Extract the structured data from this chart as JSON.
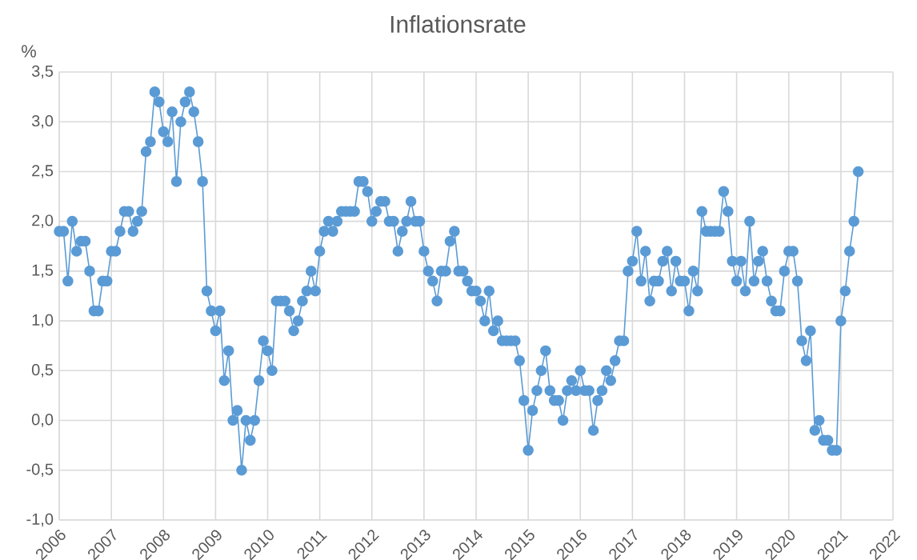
{
  "chart_data": {
    "type": "line",
    "title": "Inflationsrate",
    "ylabel": "%",
    "marker": "circle",
    "line_style": "solid",
    "grid": true,
    "xlim": [
      "2006",
      "2022"
    ],
    "xticks": [
      "2006",
      "2007",
      "2008",
      "2009",
      "2010",
      "2011",
      "2012",
      "2013",
      "2014",
      "2015",
      "2016",
      "2017",
      "2018",
      "2019",
      "2020",
      "2021",
      "2022"
    ],
    "ylim": [
      -1.0,
      3.5
    ],
    "yticks": [
      {
        "value": -1.0,
        "label": "-1,0"
      },
      {
        "value": -0.5,
        "label": "-0,5"
      },
      {
        "value": 0.0,
        "label": "0,0"
      },
      {
        "value": 0.5,
        "label": "0,5"
      },
      {
        "value": 1.0,
        "label": "1,0"
      },
      {
        "value": 1.5,
        "label": "1,5"
      },
      {
        "value": 2.0,
        "label": "2,0"
      },
      {
        "value": 2.5,
        "label": "2,5"
      },
      {
        "value": 3.0,
        "label": "3,0"
      },
      {
        "value": 3.5,
        "label": "3,5"
      }
    ],
    "x": [
      "2006-01",
      "2006-02",
      "2006-03",
      "2006-04",
      "2006-05",
      "2006-06",
      "2006-07",
      "2006-08",
      "2006-09",
      "2006-10",
      "2006-11",
      "2006-12",
      "2007-01",
      "2007-02",
      "2007-03",
      "2007-04",
      "2007-05",
      "2007-06",
      "2007-07",
      "2007-08",
      "2007-09",
      "2007-10",
      "2007-11",
      "2007-12",
      "2008-01",
      "2008-02",
      "2008-03",
      "2008-04",
      "2008-05",
      "2008-06",
      "2008-07",
      "2008-08",
      "2008-09",
      "2008-10",
      "2008-11",
      "2008-12",
      "2009-01",
      "2009-02",
      "2009-03",
      "2009-04",
      "2009-05",
      "2009-06",
      "2009-07",
      "2009-08",
      "2009-09",
      "2009-10",
      "2009-11",
      "2009-12",
      "2010-01",
      "2010-02",
      "2010-03",
      "2010-04",
      "2010-05",
      "2010-06",
      "2010-07",
      "2010-08",
      "2010-09",
      "2010-10",
      "2010-11",
      "2010-12",
      "2011-01",
      "2011-02",
      "2011-03",
      "2011-04",
      "2011-05",
      "2011-06",
      "2011-07",
      "2011-08",
      "2011-09",
      "2011-10",
      "2011-11",
      "2011-12",
      "2012-01",
      "2012-02",
      "2012-03",
      "2012-04",
      "2012-05",
      "2012-06",
      "2012-07",
      "2012-08",
      "2012-09",
      "2012-10",
      "2012-11",
      "2012-12",
      "2013-01",
      "2013-02",
      "2013-03",
      "2013-04",
      "2013-05",
      "2013-06",
      "2013-07",
      "2013-08",
      "2013-09",
      "2013-10",
      "2013-11",
      "2013-12",
      "2014-01",
      "2014-02",
      "2014-03",
      "2014-04",
      "2014-05",
      "2014-06",
      "2014-07",
      "2014-08",
      "2014-09",
      "2014-10",
      "2014-11",
      "2014-12",
      "2015-01",
      "2015-02",
      "2015-03",
      "2015-04",
      "2015-05",
      "2015-06",
      "2015-07",
      "2015-08",
      "2015-09",
      "2015-10",
      "2015-11",
      "2015-12",
      "2016-01",
      "2016-02",
      "2016-03",
      "2016-04",
      "2016-05",
      "2016-06",
      "2016-07",
      "2016-08",
      "2016-09",
      "2016-10",
      "2016-11",
      "2016-12",
      "2017-01",
      "2017-02",
      "2017-03",
      "2017-04",
      "2017-05",
      "2017-06",
      "2017-07",
      "2017-08",
      "2017-09",
      "2017-10",
      "2017-11",
      "2017-12",
      "2018-01",
      "2018-02",
      "2018-03",
      "2018-04",
      "2018-05",
      "2018-06",
      "2018-07",
      "2018-08",
      "2018-09",
      "2018-10",
      "2018-11",
      "2018-12",
      "2019-01",
      "2019-02",
      "2019-03",
      "2019-04",
      "2019-05",
      "2019-06",
      "2019-07",
      "2019-08",
      "2019-09",
      "2019-10",
      "2019-11",
      "2019-12",
      "2020-01",
      "2020-02",
      "2020-03",
      "2020-04",
      "2020-05",
      "2020-06",
      "2020-07",
      "2020-08",
      "2020-09",
      "2020-10",
      "2020-11",
      "2020-12",
      "2021-01",
      "2021-02",
      "2021-03",
      "2021-04",
      "2021-05"
    ],
    "series": [
      {
        "color": "#5b9bd5",
        "values": [
          1.9,
          1.9,
          1.4,
          2.0,
          1.7,
          1.8,
          1.8,
          1.5,
          1.1,
          1.1,
          1.4,
          1.4,
          1.7,
          1.7,
          1.9,
          2.1,
          2.1,
          1.9,
          2.0,
          2.1,
          2.7,
          2.8,
          3.3,
          3.2,
          2.9,
          2.8,
          3.1,
          2.4,
          3.0,
          3.2,
          3.3,
          3.1,
          2.8,
          2.4,
          1.3,
          1.1,
          0.9,
          1.1,
          0.4,
          0.7,
          0.0,
          0.1,
          -0.5,
          0.0,
          -0.2,
          0.0,
          0.4,
          0.8,
          0.7,
          0.5,
          1.2,
          1.2,
          1.2,
          1.1,
          0.9,
          1.0,
          1.2,
          1.3,
          1.5,
          1.3,
          1.7,
          1.9,
          2.0,
          1.9,
          2.0,
          2.1,
          2.1,
          2.1,
          2.1,
          2.4,
          2.4,
          2.3,
          2.0,
          2.1,
          2.2,
          2.2,
          2.0,
          2.0,
          1.7,
          1.9,
          2.0,
          2.2,
          2.0,
          2.0,
          1.7,
          1.5,
          1.4,
          1.2,
          1.5,
          1.5,
          1.8,
          1.9,
          1.5,
          1.5,
          1.4,
          1.3,
          1.3,
          1.2,
          1.0,
          1.3,
          0.9,
          1.0,
          0.8,
          0.8,
          0.8,
          0.8,
          0.6,
          0.2,
          -0.3,
          0.1,
          0.3,
          0.5,
          0.7,
          0.3,
          0.2,
          0.2,
          0.0,
          0.3,
          0.4,
          0.3,
          0.5,
          0.3,
          0.3,
          -0.1,
          0.2,
          0.3,
          0.5,
          0.4,
          0.6,
          0.8,
          0.8,
          1.5,
          1.6,
          1.9,
          1.4,
          1.7,
          1.2,
          1.4,
          1.4,
          1.6,
          1.7,
          1.3,
          1.6,
          1.4,
          1.4,
          1.1,
          1.5,
          1.3,
          2.1,
          1.9,
          1.9,
          1.9,
          1.9,
          2.3,
          2.1,
          1.6,
          1.4,
          1.6,
          1.3,
          2.0,
          1.4,
          1.6,
          1.7,
          1.4,
          1.2,
          1.1,
          1.1,
          1.5,
          1.7,
          1.7,
          1.4,
          0.8,
          0.6,
          0.9,
          -0.1,
          0.0,
          -0.2,
          -0.2,
          -0.3,
          -0.3,
          1.0,
          1.3,
          1.7,
          2.0,
          2.5
        ]
      }
    ]
  }
}
